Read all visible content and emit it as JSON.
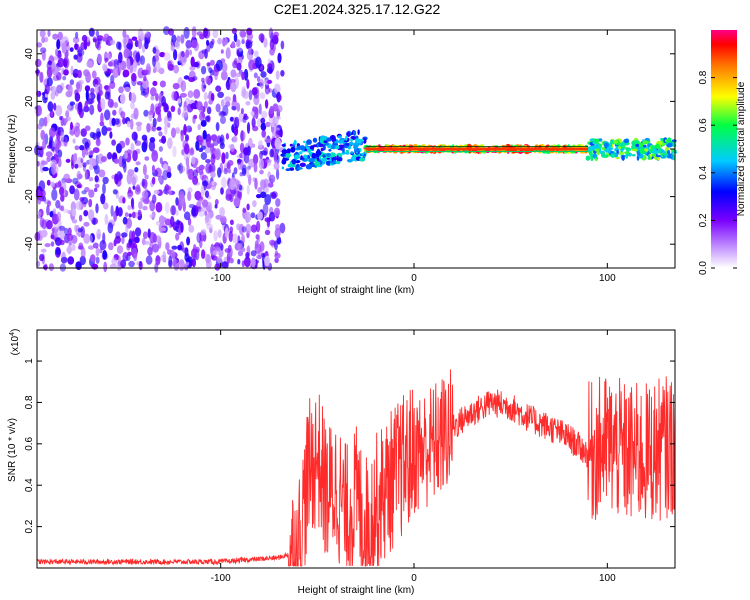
{
  "figure": {
    "title": "C2E1.2024.325.17.12.G22"
  },
  "chart_data": [
    {
      "type": "heatmap",
      "xlabel": "Height of straight line (km)",
      "ylabel": "Frequency (Hz)",
      "xlim": [
        -195,
        135
      ],
      "ylim": [
        -50,
        50
      ],
      "xticks": [
        -100,
        0,
        100
      ],
      "yticks": [
        -40,
        -20,
        0,
        20,
        40
      ],
      "colorbar": {
        "label": "Normalized spectral amplitude",
        "range": [
          0.0,
          1.0
        ],
        "ticks": [
          0.0,
          0.2,
          0.4,
          0.6,
          0.8
        ],
        "colormap": [
          "#ffffff",
          "#7a00ff",
          "#0000ff",
          "#00ccff",
          "#00ff66",
          "#ffff00",
          "#ff8800",
          "#ff0000",
          "#ff0088"
        ]
      },
      "regions": [
        {
          "x_range": [
            -195,
            -68
          ],
          "description_level": "noise, scattered purple 0.1-0.3 across full frequency range"
        },
        {
          "x_range": [
            -68,
            -25
          ],
          "center_freq": 0,
          "spread": 6,
          "level": 0.45
        },
        {
          "x_range": [
            -25,
            90
          ],
          "center_freq": 0,
          "spread": 1,
          "level": 0.9
        },
        {
          "x_range": [
            90,
            135
          ],
          "center_freq": 0,
          "spread": 4,
          "level": 0.6
        }
      ],
      "grid": false,
      "legend": "colorbar-right"
    },
    {
      "type": "line",
      "xlabel": "Height of straight line (km)",
      "ylabel": "SNR (10 * v/v)",
      "yscale_label": "(x10",
      "yscale_exponent": "4",
      "yscale_close": ")",
      "xlim": [
        -195,
        135
      ],
      "ylim": [
        0,
        1.15
      ],
      "xticks": [
        -100,
        0,
        100
      ],
      "yticks": [
        0.2,
        0.4,
        0.6,
        0.8,
        1.0
      ],
      "color": "#ff2222",
      "envelope": [
        [
          -195,
          0.03
        ],
        [
          -100,
          0.03
        ],
        [
          -70,
          0.05
        ],
        [
          -60,
          0.08
        ],
        [
          -55,
          0.45
        ],
        [
          -50,
          0.55
        ],
        [
          -45,
          0.35
        ],
        [
          -40,
          0.4
        ],
        [
          -35,
          0.25
        ],
        [
          -30,
          0.35
        ],
        [
          -25,
          0.2
        ],
        [
          -20,
          0.3
        ],
        [
          -10,
          0.45
        ],
        [
          0,
          0.55
        ],
        [
          10,
          0.6
        ],
        [
          20,
          0.68
        ],
        [
          30,
          0.75
        ],
        [
          40,
          0.8
        ],
        [
          50,
          0.78
        ],
        [
          60,
          0.72
        ],
        [
          70,
          0.68
        ],
        [
          80,
          0.63
        ],
        [
          90,
          0.55
        ],
        [
          100,
          0.6
        ],
        [
          110,
          0.55
        ],
        [
          120,
          0.55
        ],
        [
          135,
          0.6
        ]
      ],
      "grid": false
    }
  ]
}
